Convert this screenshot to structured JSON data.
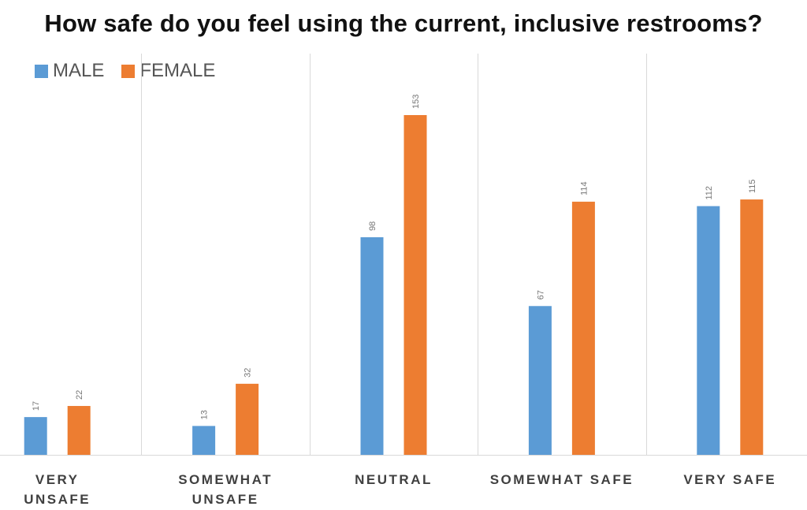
{
  "chart_data": {
    "type": "bar",
    "title": "How safe do you feel using the current, inclusive restrooms?",
    "categories": [
      "VERY UNSAFE",
      "SOMEWHAT UNSAFE",
      "NEUTRAL",
      "SOMEWHAT SAFE",
      "VERY SAFE"
    ],
    "series": [
      {
        "name": "MALE",
        "color": "#5B9BD5",
        "values": [
          17,
          13,
          98,
          67,
          112
        ]
      },
      {
        "name": "FEMALE",
        "color": "#ED7D31",
        "values": [
          22,
          32,
          153,
          114,
          115
        ]
      }
    ],
    "ylim": [
      0,
      160
    ],
    "legend_position": "top-left",
    "grid": false,
    "category_separators": true,
    "data_labels": true
  }
}
